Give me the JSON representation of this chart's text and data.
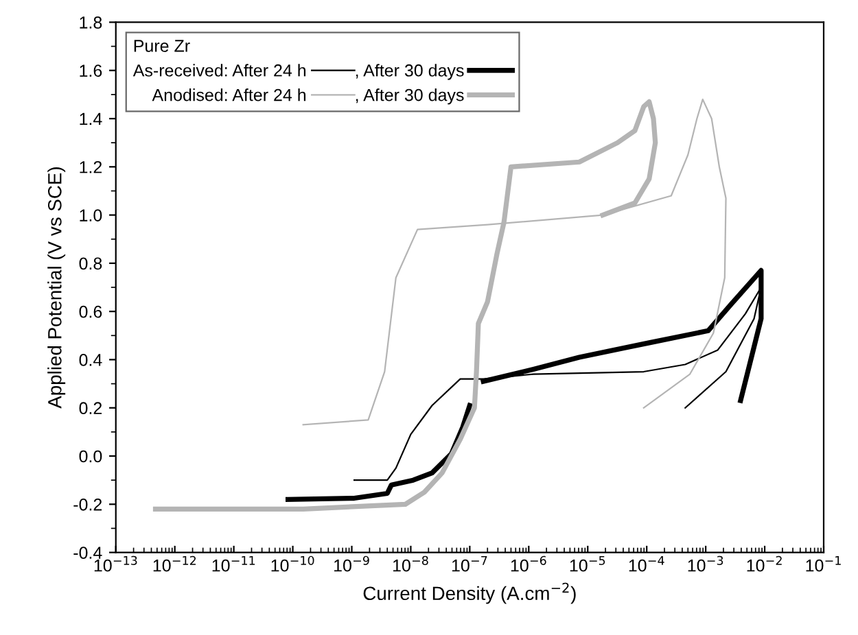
{
  "chart_data": {
    "type": "line",
    "xlabel": "Current Density (A.cm$^{−2}$)",
    "ylabel": "Applied Potential (V vs SCE)",
    "legend_title": "Pure Zr",
    "log": "x",
    "grid": false,
    "legend": "top left",
    "xlim": [
      1e-13,
      0.1
    ],
    "xticks": [
      {
        "value": 1e-13,
        "label": "10$^{−13}$"
      },
      {
        "value": 1e-12,
        "label": "10$^{−12}$"
      },
      {
        "value": 1e-11,
        "label": "10$^{−11}$"
      },
      {
        "value": 1e-10,
        "label": "10$^{−10}$"
      },
      {
        "value": 1e-09,
        "label": "10$^{−9}$"
      },
      {
        "value": 1e-08,
        "label": "10$^{−8}$"
      },
      {
        "value": 1e-07,
        "label": "10$^{−7}$"
      },
      {
        "value": 1e-06,
        "label": "10$^{−6}$"
      },
      {
        "value": 1e-05,
        "label": "10$^{−5}$"
      },
      {
        "value": 0.0001,
        "label": "10$^{−4}$"
      },
      {
        "value": 0.001,
        "label": "10$^{−3}$"
      },
      {
        "value": 0.01,
        "label": "10$^{−2}$"
      },
      {
        "value": 0.1,
        "label": "10$^{−1}$"
      }
    ],
    "ylim": [
      -0.4,
      1.8
    ],
    "yticks": [
      {
        "value": -0.4,
        "label": "-0.4"
      },
      {
        "value": -0.2,
        "label": "-0.2"
      },
      {
        "value": 0.0,
        "label": "0.0"
      },
      {
        "value": 0.2,
        "label": "0.2"
      },
      {
        "value": 0.4,
        "label": "0.4"
      },
      {
        "value": 0.6,
        "label": "0.6"
      },
      {
        "value": 0.8,
        "label": "0.8"
      },
      {
        "value": 1.0,
        "label": "1.0"
      },
      {
        "value": 1.2,
        "label": "1.2"
      },
      {
        "value": 1.4,
        "label": "1.4"
      },
      {
        "value": 1.6,
        "label": "1.6"
      },
      {
        "value": 1.8,
        "label": "1.8"
      }
    ],
    "series": [
      {
        "name": "As-received: After 24 h",
        "color": "#000000",
        "x": [
          1.1e-09,
          4e-09,
          5.6e-09,
          1e-08,
          2.3e-08,
          6.9e-08,
          1.7e-07,
          1.2e-06,
          8.9e-05,
          0.00045,
          0.0016,
          0.0047,
          0.0087,
          0.0066,
          0.0022,
          0.00045
        ],
        "values": [
          -0.1,
          -0.1,
          -0.05,
          0.09,
          0.21,
          0.32,
          0.32,
          0.34,
          0.35,
          0.38,
          0.44,
          0.59,
          0.7,
          0.57,
          0.35,
          0.2
        ]
      },
      {
        "name": ", After 30 days",
        "color": "#000000",
        "x": [
          8.3e-11,
          1.1e-09,
          4e-09,
          4.7e-09,
          1.1e-08,
          2.3e-08,
          4.9e-08,
          7.6e-08,
          1e-07,
          1.3e-07,
          1.7e-07,
          1.2e-06,
          7.2e-06,
          0.00011,
          0.0011,
          0.0027,
          0.0087,
          0.0087,
          0.0039
        ],
        "values": [
          -0.18,
          -0.175,
          -0.155,
          -0.12,
          -0.1,
          -0.07,
          0.01,
          0.12,
          0.21,
          null,
          0.31,
          0.36,
          0.41,
          0.47,
          0.52,
          0.63,
          0.77,
          0.57,
          0.23
        ]
      },
      {
        "name": "Anodised: After 24 h",
        "color": "#b4b4b4",
        "x": [
          1.5e-10,
          1.9e-09,
          3.6e-09,
          5.6e-09,
          1.3e-08,
          2e-07,
          1.8e-05,
          0.00026,
          0.0005,
          0.00071,
          0.00089,
          0.00126,
          0.0017,
          0.0022,
          0.0021,
          0.00135,
          0.00054,
          8.9e-05
        ],
        "values": [
          0.13,
          0.15,
          0.35,
          0.74,
          0.94,
          0.96,
          1.0,
          1.08,
          1.25,
          1.4,
          1.48,
          1.4,
          1.2,
          1.07,
          0.74,
          0.51,
          0.34,
          0.2
        ]
      },
      {
        "name": ", After 30 days",
        "color": "#b4b4b4",
        "x": [
          4.7e-13,
          1.5e-10,
          8.1e-09,
          1.7e-08,
          3.4e-08,
          6.9e-08,
          1.2e-07,
          1.3e-07,
          1.4e-07,
          2e-07,
          2.9e-07,
          3.8e-07,
          5e-07,
          7.2e-06,
          3.2e-05,
          6.3e-05,
          8.9e-05,
          0.00011,
          0.00013,
          0.00014,
          0.00011,
          6.3e-05,
          1.8e-05
        ],
        "values": [
          -0.22,
          -0.22,
          -0.2,
          -0.15,
          -0.07,
          0.07,
          0.2,
          0.35,
          0.55,
          0.64,
          0.84,
          0.97,
          1.2,
          1.22,
          1.3,
          1.35,
          1.45,
          1.47,
          1.4,
          1.3,
          1.15,
          1.05,
          1.0
        ]
      }
    ]
  }
}
